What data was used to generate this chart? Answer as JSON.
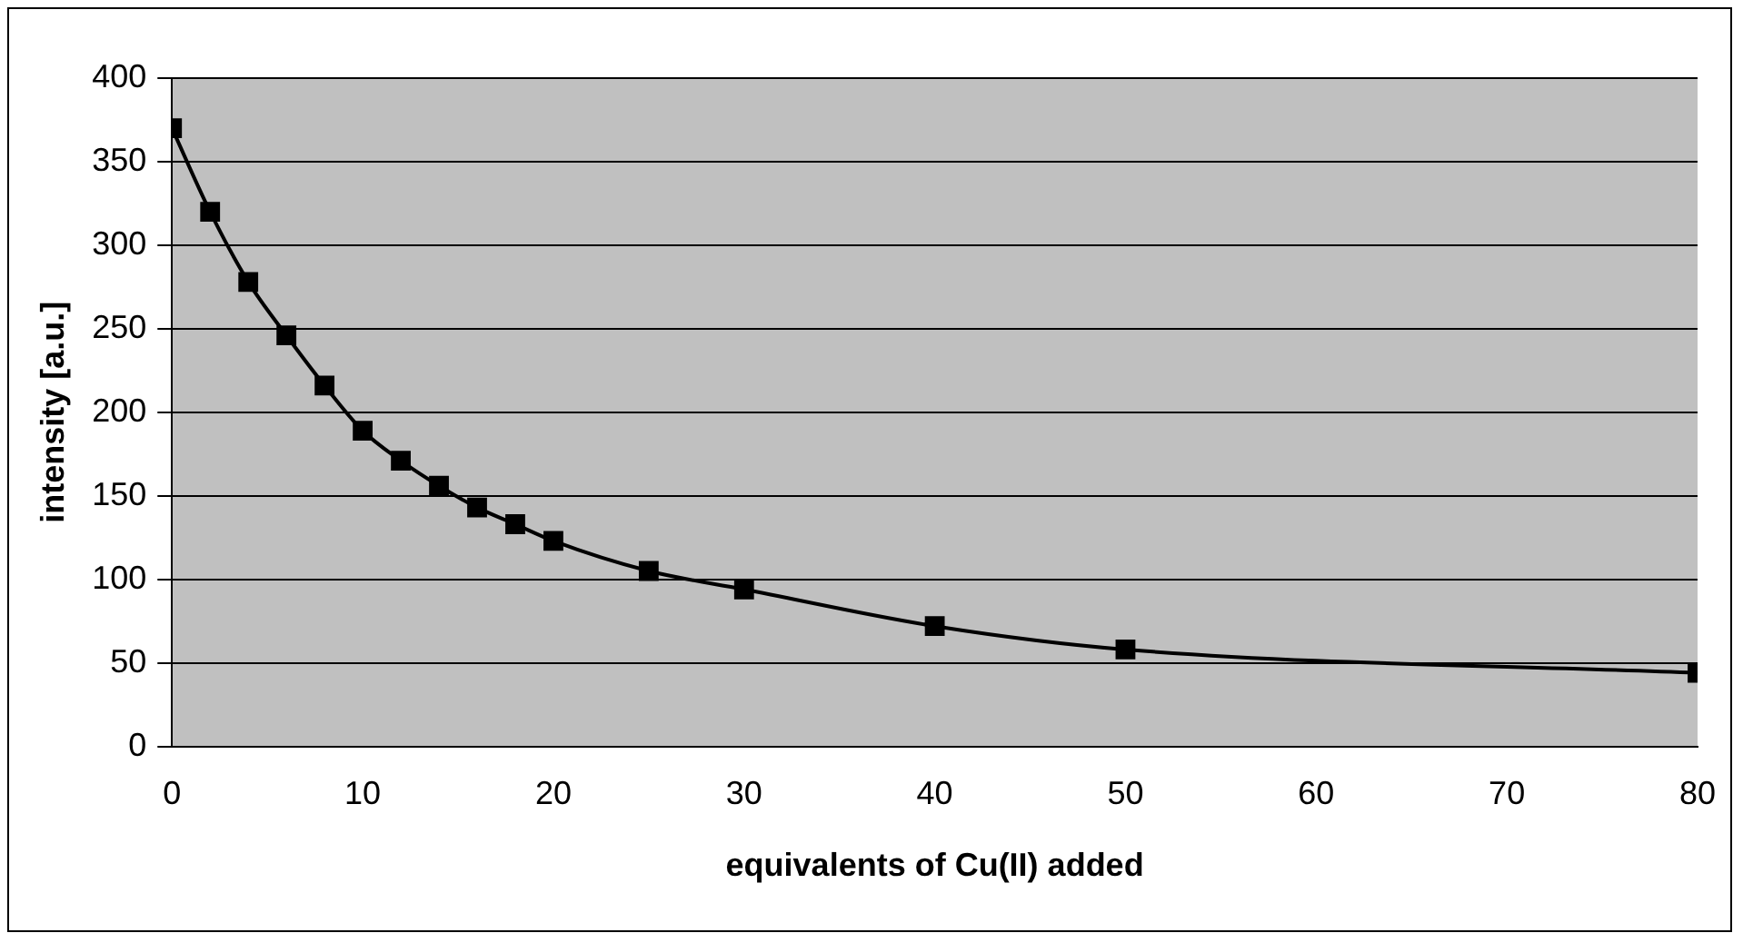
{
  "chart_data": {
    "type": "line",
    "xlabel": "equivalents of Cu(II) added",
    "ylabel": "intensity [a.u.]",
    "x": [
      0,
      2,
      4,
      6,
      8,
      10,
      12,
      14,
      16,
      18,
      20,
      25,
      30,
      40,
      50,
      80
    ],
    "series": [
      {
        "color": "#000000",
        "values": [
          370,
          320,
          278,
          246,
          216,
          189,
          171,
          156,
          143,
          133,
          123,
          105,
          94,
          72,
          58,
          44
        ]
      }
    ],
    "xlim": [
      0,
      80
    ],
    "xticks": [
      0,
      10,
      20,
      30,
      40,
      50,
      60,
      70,
      80
    ],
    "ylim": [
      0,
      400
    ],
    "yticks": [
      0,
      50,
      100,
      150,
      200,
      250,
      300,
      350,
      400
    ],
    "grid": "y",
    "legend": false,
    "marker": "square",
    "line_style": "solid"
  }
}
